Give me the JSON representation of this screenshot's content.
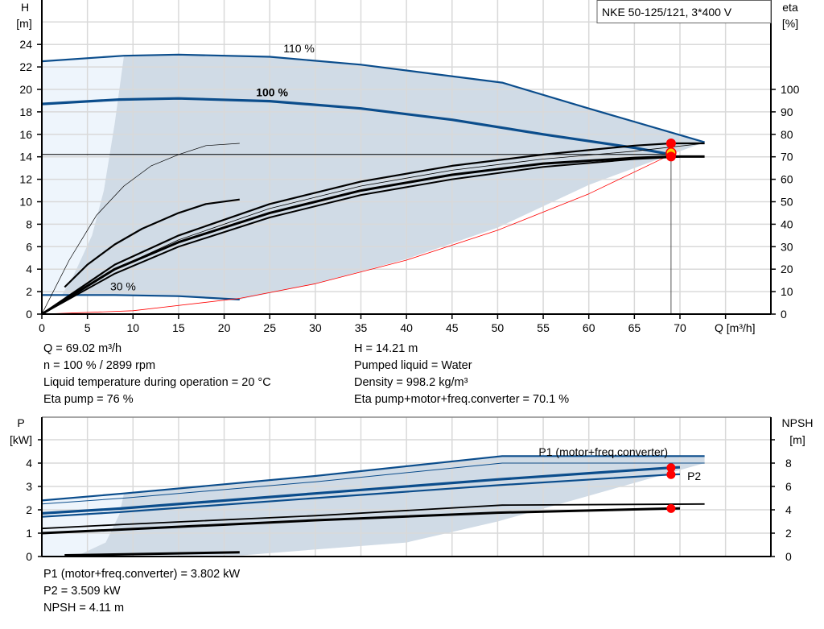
{
  "chart_data": [
    {
      "type": "line",
      "title": "NKE 50-125/121, 3*400 V",
      "xlabel": "Q [m³/h]",
      "ylabel": [
        "H",
        "[m]"
      ],
      "y2label": [
        "eta",
        "[%]"
      ],
      "xlim": [
        0,
        80
      ],
      "ylim": [
        0,
        28
      ],
      "y2lim": [
        0,
        140
      ],
      "xticks": [
        0,
        5,
        10,
        15,
        20,
        25,
        30,
        35,
        40,
        45,
        50,
        55,
        60,
        65,
        70
      ],
      "yticks": [
        0,
        2,
        4,
        6,
        8,
        10,
        12,
        14,
        16,
        18,
        20,
        22,
        24
      ],
      "y2ticks": [
        0,
        10,
        20,
        30,
        40,
        50,
        60,
        70,
        80,
        90,
        100
      ],
      "grid": true,
      "colors": {
        "curve": "#0b4d8c",
        "region": "#d0dbe6",
        "region_light": "#eef5fc",
        "system": "#ff0000",
        "eta": "#000000"
      },
      "annotations": [
        {
          "text": "110 %",
          "q": 26.5,
          "h": 23.3
        },
        {
          "text": "100 %",
          "q": 23.5,
          "h": 19.4
        },
        {
          "text": "30 %",
          "q": 7.5,
          "h": 2.1
        }
      ],
      "region_outline": [
        [
          9,
          23
        ],
        [
          15,
          23.1
        ],
        [
          25,
          22.9
        ],
        [
          35,
          22.2
        ],
        [
          50.5,
          20.6
        ],
        [
          72.7,
          15.3
        ],
        [
          69,
          14.2
        ],
        [
          60,
          11.5
        ],
        [
          50,
          7.7
        ],
        [
          40,
          4.9
        ],
        [
          30,
          2.7
        ],
        [
          21.7,
          1.3
        ],
        [
          15,
          1.6
        ],
        [
          8,
          1.7
        ],
        [
          2.2,
          1.7
        ],
        [
          3.5,
          3.5
        ],
        [
          5.5,
          7
        ],
        [
          6.8,
          11
        ],
        [
          8,
          17
        ],
        [
          9,
          23
        ]
      ],
      "series": [
        {
          "id": "speed-110",
          "axis": "H",
          "points": [
            [
              0,
              22.5
            ],
            [
              9,
              23
            ],
            [
              15,
              23.1
            ],
            [
              25,
              22.9
            ],
            [
              35,
              22.2
            ],
            [
              50.5,
              20.6
            ],
            [
              60,
              18.3
            ],
            [
              72.7,
              15.3
            ]
          ]
        },
        {
          "id": "speed-100",
          "axis": "H",
          "points": [
            [
              0,
              18.7
            ],
            [
              8.5,
              19.1
            ],
            [
              15,
              19.2
            ],
            [
              25,
              18.95
            ],
            [
              35,
              18.3
            ],
            [
              45,
              17.3
            ],
            [
              55,
              16.0
            ],
            [
              65,
              14.8
            ],
            [
              69.02,
              14.21
            ]
          ]
        },
        {
          "id": "speed-30",
          "axis": "H",
          "points": [
            [
              0,
              1.7
            ],
            [
              8,
              1.7
            ],
            [
              15,
              1.6
            ],
            [
              21.7,
              1.3
            ]
          ]
        },
        {
          "id": "system",
          "axis": "H",
          "points": [
            [
              0,
              0
            ],
            [
              10,
              0.3
            ],
            [
              21.7,
              1.4
            ],
            [
              30,
              2.7
            ],
            [
              40,
              4.8
            ],
            [
              50,
              7.46
            ],
            [
              60,
              10.7
            ],
            [
              69.02,
              14.21
            ]
          ]
        },
        {
          "id": "eta-low-speed-thin",
          "axis": "eta",
          "points": [
            [
              0,
              0
            ],
            [
              3,
              24
            ],
            [
              6,
              44
            ],
            [
              9,
              57
            ],
            [
              12,
              66
            ],
            [
              15,
              71
            ],
            [
              18,
              75
            ],
            [
              21.7,
              76
            ]
          ]
        },
        {
          "id": "eta-low-speed",
          "axis": "eta",
          "points": [
            [
              2.5,
              12
            ],
            [
              5,
              22
            ],
            [
              8,
              31
            ],
            [
              11,
              38
            ],
            [
              15,
              45
            ],
            [
              18,
              49
            ],
            [
              21.7,
              51
            ]
          ]
        },
        {
          "id": "eta-pump",
          "axis": "eta",
          "points": [
            [
              0,
              0
            ],
            [
              8,
              22
            ],
            [
              15,
              35
            ],
            [
              25,
              49
            ],
            [
              35,
              59
            ],
            [
              45,
              66
            ],
            [
              55,
              71
            ],
            [
              65,
              75
            ],
            [
              69.02,
              76
            ],
            [
              72.7,
              76
            ]
          ]
        },
        {
          "id": "eta-pump-thin",
          "axis": "eta",
          "points": [
            [
              0,
              0
            ],
            [
              8,
              20
            ],
            [
              15,
              33
            ],
            [
              25,
              47
            ],
            [
              35,
              57
            ],
            [
              45,
              64
            ],
            [
              55,
              69
            ],
            [
              65,
              72.5
            ],
            [
              72.7,
              76
            ]
          ]
        },
        {
          "id": "eta-total",
          "axis": "eta",
          "points": [
            [
              0,
              0
            ],
            [
              8,
              20
            ],
            [
              15,
              32
            ],
            [
              25,
              45
            ],
            [
              35,
              55
            ],
            [
              45,
              62
            ],
            [
              55,
              67
            ],
            [
              65,
              69.5
            ],
            [
              69.02,
              70.1
            ],
            [
              72.7,
              70.1
            ]
          ]
        },
        {
          "id": "eta-total-2",
          "axis": "eta",
          "points": [
            [
              0,
              0
            ],
            [
              8,
              18
            ],
            [
              15,
              30
            ],
            [
              25,
              43
            ],
            [
              35,
              53
            ],
            [
              45,
              60
            ],
            [
              55,
              65.5
            ],
            [
              65,
              69
            ],
            [
              70,
              70
            ]
          ]
        }
      ],
      "operating_point": {
        "q": 69.02,
        "h": 14.21,
        "eta_pump": 76,
        "eta_total": 70.1
      }
    },
    {
      "type": "line",
      "ylabel": [
        "P",
        "[kW]"
      ],
      "y2label": [
        "NPSH",
        "[m]"
      ],
      "xlim": [
        0,
        80
      ],
      "ylim": [
        0,
        6
      ],
      "y2lim": [
        0,
        12
      ],
      "yticks": [
        0,
        1,
        2,
        3,
        4
      ],
      "y2ticks": [
        0,
        2,
        4,
        6,
        8
      ],
      "grid": true,
      "annotations": [
        {
          "text": "P1 (motor+freq.converter)",
          "q": 54.5,
          "p": 4.45
        },
        {
          "text": "P2",
          "q": 70.8,
          "p": 3.45
        }
      ],
      "region_outline": [
        [
          9,
          2.7
        ],
        [
          30,
          3.4
        ],
        [
          50.5,
          4.3
        ],
        [
          72.7,
          4.3
        ],
        [
          72.7,
          4.0
        ],
        [
          60,
          2.6
        ],
        [
          50,
          1.5
        ],
        [
          40,
          0.6
        ],
        [
          30,
          0.3
        ],
        [
          22,
          0.05
        ],
        [
          4,
          0.05
        ],
        [
          7,
          0.6
        ],
        [
          8.5,
          1.8
        ],
        [
          9,
          2.7
        ]
      ],
      "series": [
        {
          "id": "p1-110",
          "axis": "P",
          "points": [
            [
              0,
              2.4
            ],
            [
              9,
              2.7
            ],
            [
              30,
              3.45
            ],
            [
              50.5,
              4.3
            ],
            [
              72.7,
              4.3
            ]
          ]
        },
        {
          "id": "p2-110",
          "axis": "P",
          "points": [
            [
              0,
              2.25
            ],
            [
              9,
              2.5
            ],
            [
              30,
              3.2
            ],
            [
              50.5,
              4.0
            ],
            [
              72.7,
              4.0
            ]
          ]
        },
        {
          "id": "p1-100",
          "axis": "P",
          "points": [
            [
              0,
              1.85
            ],
            [
              8.5,
              2.05
            ],
            [
              30,
              2.7
            ],
            [
              50,
              3.3
            ],
            [
              69.02,
              3.802
            ],
            [
              70,
              3.82
            ]
          ]
        },
        {
          "id": "p2-100",
          "axis": "P",
          "points": [
            [
              0,
              1.7
            ],
            [
              8.5,
              1.9
            ],
            [
              30,
              2.5
            ],
            [
              50,
              3.05
            ],
            [
              69.02,
              3.509
            ],
            [
              70,
              3.52
            ]
          ]
        },
        {
          "id": "npsh-110",
          "axis": "NPSH",
          "points": [
            [
              0,
              2.4
            ],
            [
              9,
              2.75
            ],
            [
              30,
              3.5
            ],
            [
              50.5,
              4.4
            ],
            [
              72.7,
              4.5
            ]
          ]
        },
        {
          "id": "npsh-100",
          "axis": "NPSH",
          "points": [
            [
              0,
              2.0
            ],
            [
              8.5,
              2.3
            ],
            [
              30,
              3.1
            ],
            [
              50,
              3.75
            ],
            [
              69.02,
              4.11
            ],
            [
              70,
              4.12
            ]
          ]
        },
        {
          "id": "p-low-speed",
          "axis": "P",
          "points": [
            [
              2.5,
              0.05
            ],
            [
              21.7,
              0.18
            ]
          ]
        }
      ],
      "operating_point": {
        "q": 69.02,
        "p1": 3.802,
        "p2": 3.509,
        "npsh": 4.11
      }
    }
  ],
  "info_top": {
    "left": [
      "Q = 69.02 m³/h",
      "n = 100 % / 2899 rpm",
      "Liquid temperature during operation = 20 °C",
      "Eta pump = 76 %"
    ],
    "right": [
      "H = 14.21 m",
      "Pumped liquid = Water",
      "Density = 998.2 kg/m³",
      "Eta pump+motor+freq.converter = 70.1 %"
    ]
  },
  "info_bottom": [
    "P1 (motor+freq.converter) = 3.802 kW",
    "P2 = 3.509 kW",
    "NPSH = 4.11 m"
  ]
}
